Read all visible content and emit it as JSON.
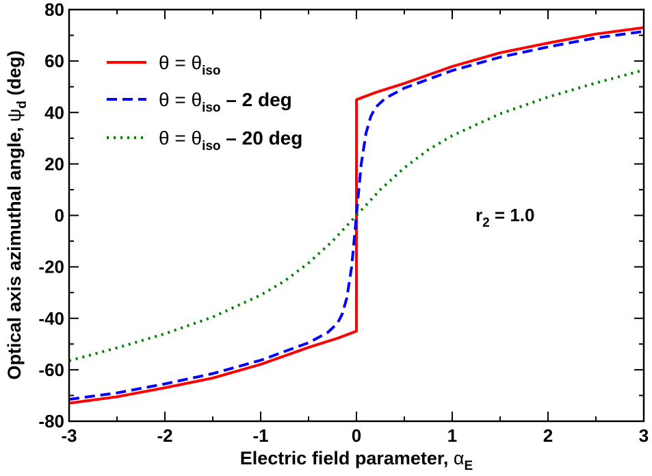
{
  "chart_data": {
    "type": "line",
    "title": "",
    "xlabel": {
      "main": "Electric field parameter, ",
      "symbol": "α",
      "sub": "E"
    },
    "ylabel": {
      "main": "Optical axis azimuthal angle, ",
      "symbol": "ψ",
      "sub": "d",
      "tail": " (deg)"
    },
    "xlim": [
      -3,
      3
    ],
    "ylim": [
      -80,
      80
    ],
    "x_ticks": [
      -3,
      -2,
      -1,
      0,
      1,
      2,
      3
    ],
    "x_tick_labels": [
      "-3",
      "-2",
      "-1",
      "0",
      "1",
      "2",
      "3"
    ],
    "y_ticks": [
      -80,
      -60,
      -40,
      -20,
      0,
      20,
      40,
      60,
      80
    ],
    "y_tick_labels": [
      "-80",
      "-60",
      "-40",
      "-20",
      "0",
      "20",
      "40",
      "60",
      "80"
    ],
    "grid": false,
    "legend_position": "top-left",
    "annotation": {
      "main": "r",
      "sub": "2",
      "tail": " = 1.0"
    },
    "series": [
      {
        "name": "θ = θiso",
        "label": {
          "main": "θ = θ",
          "sub": "iso",
          "tail": ""
        },
        "color": "#ff0000",
        "dash": "solid",
        "x": [
          -3,
          -2.5,
          -2,
          -1.5,
          -1,
          -0.5,
          -0.2,
          -0.001,
          0.001,
          0.2,
          0.5,
          1,
          1.5,
          2,
          2.5,
          3
        ],
        "y": [
          -73,
          -70.5,
          -67,
          -63.2,
          -57.9,
          -51.3,
          -47.8,
          -45,
          45,
          47.8,
          51.3,
          57.9,
          63.2,
          67,
          70.5,
          73
        ]
      },
      {
        "name": "θ = θiso – 2 deg",
        "label": {
          "main": "θ = θ",
          "sub": "iso",
          "tail": " – 2 deg"
        },
        "color": "#0000ff",
        "dash": "dashed",
        "x": [
          -3,
          -2.5,
          -2,
          -1.5,
          -1,
          -0.5,
          -0.3,
          -0.2,
          -0.15,
          -0.1,
          -0.05,
          -0.02,
          0,
          0.02,
          0.05,
          0.1,
          0.15,
          0.2,
          0.3,
          0.5,
          1,
          1.5,
          2,
          2.5,
          3
        ],
        "y": [
          -71.5,
          -69,
          -65.5,
          -61.5,
          -56.3,
          -49.5,
          -45.5,
          -42,
          -38.5,
          -32,
          -20,
          -8,
          0,
          8,
          20,
          32,
          38.5,
          42,
          45.5,
          49.5,
          56.3,
          61.5,
          65.5,
          69,
          71.5
        ]
      },
      {
        "name": "θ = θiso – 20 deg",
        "label": {
          "main": "θ =  θ",
          "sub": "iso",
          "tail": " – 20 deg"
        },
        "color": "#008000",
        "dash": "dotted",
        "x": [
          -3,
          -2.5,
          -2,
          -1.5,
          -1,
          -0.75,
          -0.5,
          -0.25,
          0,
          0.25,
          0.5,
          0.75,
          1,
          1.5,
          2,
          2.5,
          3
        ],
        "y": [
          -56.5,
          -51.5,
          -46,
          -39.5,
          -31,
          -25.5,
          -18.5,
          -10,
          0,
          10,
          18.5,
          25.5,
          31,
          39.5,
          46,
          51.5,
          56.5
        ]
      }
    ]
  }
}
